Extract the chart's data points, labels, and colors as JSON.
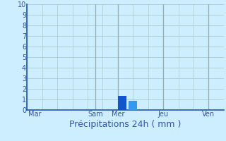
{
  "xlabel": "Précipitations 24h ( mm )",
  "background_color": "#cceeff",
  "grid_color_h": "#aacccc",
  "grid_color_v": "#aacccc",
  "vline_color": "#99aaaa",
  "bar_color_1": "#1155cc",
  "bar_color_2": "#3399ee",
  "ylim": [
    0,
    10
  ],
  "yticks": [
    0,
    1,
    2,
    3,
    4,
    5,
    6,
    7,
    8,
    9,
    10
  ],
  "xtick_labels": [
    "Mar",
    "Sam",
    "Mer",
    "Jeu",
    "Ven"
  ],
  "xtick_positions": [
    0.5,
    4.5,
    6.0,
    9.0,
    12.0
  ],
  "xlim": [
    0,
    13
  ],
  "n_minor_v": 13,
  "bar1_x": 6.3,
  "bar2_x": 7.0,
  "bar1_height": 1.35,
  "bar2_height": 0.85,
  "bar_width": 0.55,
  "vline_major_positions": [
    0,
    4.5,
    6.0,
    9.0,
    12.0
  ],
  "xlabel_fontsize": 9,
  "tick_fontsize": 7,
  "label_color": "#3355aa",
  "axis_color": "#2255aa"
}
